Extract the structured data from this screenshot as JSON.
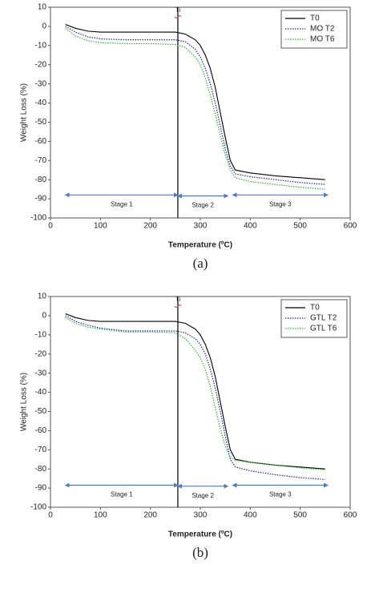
{
  "chart_data": [
    {
      "type": "line",
      "caption": "(a)",
      "x_label": "Temperature (ºC)",
      "y_label": "Weight Loss (%)",
      "xlim": [
        0,
        600
      ],
      "xticks": [
        0,
        100,
        200,
        300,
        400,
        500,
        600
      ],
      "ylim": [
        -100,
        10
      ],
      "yticks": [
        10,
        0,
        -10,
        -20,
        -30,
        -40,
        -50,
        -60,
        -70,
        -80,
        -90,
        -100
      ],
      "legend": "upper right",
      "x": [
        30,
        50,
        75,
        100,
        150,
        200,
        250,
        270,
        290,
        300,
        310,
        320,
        330,
        340,
        350,
        360,
        370,
        400,
        450,
        500,
        550
      ],
      "series": [
        {
          "name": "T0",
          "color": "#000000",
          "style": "solid",
          "values": [
            1,
            -1,
            -2.5,
            -3,
            -3,
            -3,
            -3,
            -4,
            -7,
            -10,
            -15,
            -22,
            -32,
            -45,
            -58,
            -70,
            -75,
            -76.5,
            -78,
            -79,
            -80
          ]
        },
        {
          "name": "MO T2",
          "color": "#1f1fd0",
          "style": "dotted",
          "values": [
            0,
            -3,
            -5.5,
            -6.5,
            -7,
            -7,
            -7,
            -8,
            -12,
            -16,
            -22,
            -30,
            -40,
            -52,
            -64,
            -73,
            -77,
            -78.5,
            -80,
            -81.5,
            -82.5
          ]
        },
        {
          "name": "MO T6",
          "color": "#22c422",
          "style": "dotted",
          "values": [
            -1,
            -5,
            -7.5,
            -8.5,
            -9,
            -9,
            -9.5,
            -11,
            -16,
            -20,
            -27,
            -36,
            -46,
            -57,
            -67,
            -75,
            -79,
            -81,
            -82.5,
            -84,
            -85
          ]
        }
      ],
      "marker_line": {
        "label": "Ti",
        "x": 255
      },
      "stages": [
        {
          "label": "Stage 1",
          "x": [
            30,
            255
          ],
          "y": -88
        },
        {
          "label": "Stage 2",
          "x": [
            255,
            355
          ],
          "y": -88.5
        },
        {
          "label": "Stage 3",
          "x": [
            365,
            555
          ],
          "y": -88
        }
      ]
    },
    {
      "type": "line",
      "caption": "(b)",
      "x_label": "Temperature (ºC)",
      "y_label": "Weight Loss (%)",
      "xlim": [
        0,
        600
      ],
      "xticks": [
        0,
        100,
        200,
        300,
        400,
        500,
        600
      ],
      "ylim": [
        -100,
        10
      ],
      "yticks": [
        10,
        0,
        -10,
        -20,
        -30,
        -40,
        -50,
        -60,
        -70,
        -80,
        -90,
        -100
      ],
      "legend": "upper right",
      "x": [
        30,
        50,
        75,
        100,
        150,
        200,
        250,
        270,
        290,
        300,
        310,
        320,
        330,
        340,
        350,
        360,
        370,
        400,
        450,
        500,
        550
      ],
      "series": [
        {
          "name": "T0",
          "color": "#000000",
          "style": "solid",
          "values": [
            1,
            -1,
            -2.5,
            -3,
            -3,
            -3,
            -3,
            -4,
            -7,
            -10,
            -15,
            -22,
            -32,
            -45,
            -58,
            -70,
            -75,
            -76.5,
            -78,
            -79,
            -80
          ]
        },
        {
          "name": "GTL T2",
          "color": "#1f1fd0",
          "style": "dotted",
          "values": [
            0,
            -3,
            -5,
            -6.5,
            -8,
            -8,
            -8,
            -9,
            -12,
            -15,
            -20,
            -28,
            -38,
            -50,
            -63,
            -75,
            -79,
            -81,
            -83,
            -84.5,
            -85.5
          ]
        },
        {
          "name": "GTL T6",
          "color": "#22c422",
          "style": "dotted",
          "values": [
            -1,
            -4,
            -6,
            -7,
            -8.5,
            -8.5,
            -9,
            -12,
            -18,
            -22,
            -28,
            -37,
            -48,
            -59,
            -68,
            -74,
            -75.5,
            -76.5,
            -78,
            -79.5,
            -80.5
          ]
        }
      ],
      "marker_line": {
        "label": "Ti",
        "x": 255
      },
      "stages": [
        {
          "label": "Stage 1",
          "x": [
            30,
            255
          ],
          "y": -88.5
        },
        {
          "label": "Stage 2",
          "x": [
            255,
            355
          ],
          "y": -89
        },
        {
          "label": "Stage 3",
          "x": [
            365,
            555
          ],
          "y": -88.5
        }
      ]
    }
  ]
}
